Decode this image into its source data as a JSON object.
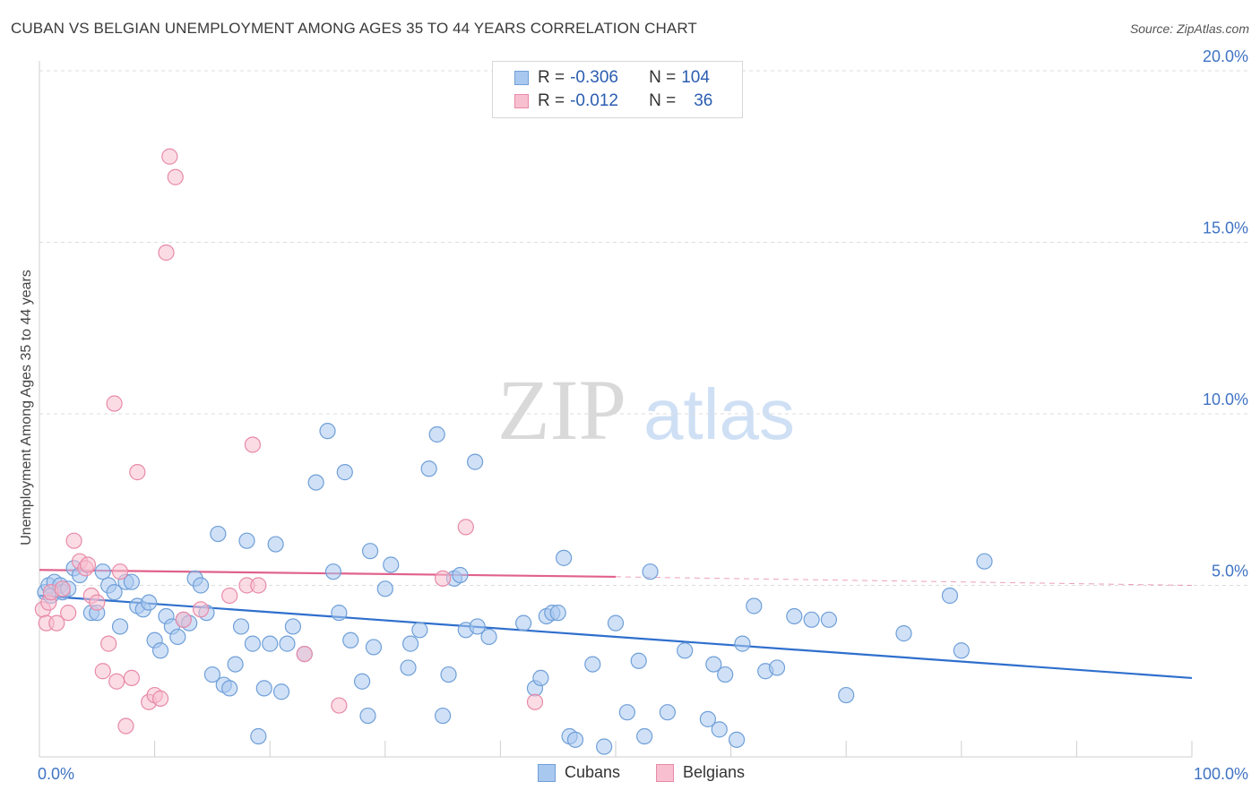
{
  "header": {
    "title": "CUBAN VS BELGIAN UNEMPLOYMENT AMONG AGES 35 TO 44 YEARS CORRELATION CHART",
    "source": "Source: ZipAtlas.com"
  },
  "watermark": {
    "zip": "ZIP",
    "atlas": "atlas"
  },
  "legend": {
    "cubans": {
      "r_label": "R =",
      "r_value": "-0.306",
      "n_label": "N =",
      "n_value": "104"
    },
    "belgians": {
      "r_label": "R =",
      "r_value": "-0.012",
      "n_label": "N =",
      "n_value": "36"
    }
  },
  "bottom_legend": {
    "cubans": "Cubans",
    "belgians": "Belgians"
  },
  "colors": {
    "cubans_fill": "#a9c8f0",
    "cubans_stroke": "#6f9fd8",
    "cubans_line": "#2f6fcd",
    "belgians_fill": "#f7bfd0",
    "belgians_stroke": "#e88aa8",
    "belgians_line": "#e0628c",
    "tick_label": "#3f73c4",
    "grid": "#dcdcdc"
  },
  "chart_data": {
    "type": "scatter",
    "title": "CUBAN VS BELGIAN UNEMPLOYMENT AMONG AGES 35 TO 44 YEARS CORRELATION CHART",
    "ylabel": "Unemployment Among Ages 35 to 44 years",
    "xlabel": "",
    "xlim": [
      0,
      100
    ],
    "ylim": [
      0,
      20.5
    ],
    "x_tick_labels": {
      "0": "0.0%",
      "100": "100.0%"
    },
    "y_ticks": [
      5,
      10,
      15,
      20
    ],
    "y_tick_labels": [
      "5.0%",
      "10.0%",
      "15.0%",
      "20.0%"
    ],
    "grid": "horizontal dashed",
    "legend_position": "top-center",
    "series": [
      {
        "name": "Cubans",
        "trend": {
          "x": [
            0,
            100
          ],
          "y": [
            4.7,
            2.3
          ]
        },
        "points": [
          [
            0.5,
            4.8
          ],
          [
            0.8,
            5.0
          ],
          [
            1.0,
            4.7
          ],
          [
            1.3,
            5.1
          ],
          [
            1.8,
            5.0
          ],
          [
            2.0,
            4.8
          ],
          [
            2.5,
            4.9
          ],
          [
            3.0,
            5.5
          ],
          [
            3.5,
            5.3
          ],
          [
            4.5,
            4.2
          ],
          [
            5.0,
            4.2
          ],
          [
            5.5,
            5.4
          ],
          [
            6.0,
            5.0
          ],
          [
            6.5,
            4.8
          ],
          [
            7.0,
            3.8
          ],
          [
            7.5,
            5.1
          ],
          [
            8.0,
            5.1
          ],
          [
            8.5,
            4.4
          ],
          [
            9.0,
            4.3
          ],
          [
            9.5,
            4.5
          ],
          [
            10.0,
            3.4
          ],
          [
            10.5,
            3.1
          ],
          [
            11.0,
            4.1
          ],
          [
            11.5,
            3.8
          ],
          [
            12.0,
            3.5
          ],
          [
            12.5,
            4.0
          ],
          [
            13.0,
            3.9
          ],
          [
            13.5,
            5.2
          ],
          [
            14.0,
            5.0
          ],
          [
            14.5,
            4.2
          ],
          [
            15.0,
            2.4
          ],
          [
            15.5,
            6.5
          ],
          [
            16.0,
            2.1
          ],
          [
            16.5,
            2.0
          ],
          [
            17.0,
            2.7
          ],
          [
            17.5,
            3.8
          ],
          [
            18.0,
            6.3
          ],
          [
            18.5,
            3.3
          ],
          [
            19.0,
            0.6
          ],
          [
            19.5,
            2.0
          ],
          [
            20.0,
            3.3
          ],
          [
            20.5,
            6.2
          ],
          [
            21.0,
            1.9
          ],
          [
            21.5,
            3.3
          ],
          [
            22.0,
            3.8
          ],
          [
            23.0,
            3.0
          ],
          [
            24.0,
            8.0
          ],
          [
            25.0,
            9.5
          ],
          [
            25.5,
            5.4
          ],
          [
            26.0,
            4.2
          ],
          [
            26.5,
            8.3
          ],
          [
            27.0,
            3.4
          ],
          [
            28.0,
            2.2
          ],
          [
            28.5,
            1.2
          ],
          [
            28.7,
            6.0
          ],
          [
            29.0,
            3.2
          ],
          [
            30.0,
            4.9
          ],
          [
            30.5,
            5.6
          ],
          [
            32.0,
            2.6
          ],
          [
            32.2,
            3.3
          ],
          [
            33.0,
            3.7
          ],
          [
            33.8,
            8.4
          ],
          [
            34.5,
            9.4
          ],
          [
            35.0,
            1.2
          ],
          [
            35.5,
            2.4
          ],
          [
            36.0,
            5.2
          ],
          [
            36.5,
            5.3
          ],
          [
            37.0,
            3.7
          ],
          [
            37.8,
            8.6
          ],
          [
            38.0,
            3.8
          ],
          [
            39.0,
            3.5
          ],
          [
            42.0,
            3.9
          ],
          [
            43.0,
            2.0
          ],
          [
            43.5,
            2.3
          ],
          [
            44.0,
            4.1
          ],
          [
            44.5,
            4.2
          ],
          [
            45.0,
            4.2
          ],
          [
            45.5,
            5.8
          ],
          [
            46.0,
            0.6
          ],
          [
            46.5,
            0.5
          ],
          [
            48.0,
            2.7
          ],
          [
            49.0,
            0.3
          ],
          [
            50.0,
            3.9
          ],
          [
            51.0,
            1.3
          ],
          [
            52.0,
            2.8
          ],
          [
            52.5,
            0.6
          ],
          [
            53.0,
            5.4
          ],
          [
            54.5,
            1.3
          ],
          [
            56.0,
            3.1
          ],
          [
            58.0,
            1.1
          ],
          [
            58.5,
            2.7
          ],
          [
            59.0,
            0.8
          ],
          [
            59.5,
            2.4
          ],
          [
            60.5,
            0.5
          ],
          [
            61.0,
            3.3
          ],
          [
            62.0,
            4.4
          ],
          [
            63.0,
            2.5
          ],
          [
            64.0,
            2.6
          ],
          [
            65.5,
            4.1
          ],
          [
            67.0,
            4.0
          ],
          [
            68.5,
            4.0
          ],
          [
            70.0,
            1.8
          ],
          [
            75.0,
            3.6
          ],
          [
            79.0,
            4.7
          ],
          [
            80.0,
            3.1
          ],
          [
            82.0,
            5.7
          ]
        ]
      },
      {
        "name": "Belgians",
        "trend": {
          "x": [
            0,
            50
          ],
          "y": [
            5.45,
            5.25
          ],
          "dashed_to": [
            100,
            5.0
          ]
        },
        "points": [
          [
            0.3,
            4.3
          ],
          [
            0.6,
            3.9
          ],
          [
            0.8,
            4.5
          ],
          [
            1.0,
            4.8
          ],
          [
            1.5,
            3.9
          ],
          [
            2.0,
            4.9
          ],
          [
            2.5,
            4.2
          ],
          [
            3.0,
            6.3
          ],
          [
            3.5,
            5.7
          ],
          [
            4.0,
            5.5
          ],
          [
            4.2,
            5.6
          ],
          [
            4.5,
            4.7
          ],
          [
            5.0,
            4.5
          ],
          [
            5.5,
            2.5
          ],
          [
            6.0,
            3.3
          ],
          [
            6.5,
            10.3
          ],
          [
            6.7,
            2.2
          ],
          [
            7.0,
            5.4
          ],
          [
            7.5,
            0.9
          ],
          [
            8.0,
            2.3
          ],
          [
            8.5,
            8.3
          ],
          [
            9.5,
            1.6
          ],
          [
            10.0,
            1.8
          ],
          [
            10.5,
            1.7
          ],
          [
            11.0,
            14.7
          ],
          [
            11.3,
            17.5
          ],
          [
            11.8,
            16.9
          ],
          [
            12.5,
            4.0
          ],
          [
            14.0,
            4.3
          ],
          [
            16.5,
            4.7
          ],
          [
            18.0,
            5.0
          ],
          [
            18.5,
            9.1
          ],
          [
            19.0,
            5.0
          ],
          [
            23.0,
            3.0
          ],
          [
            26.0,
            1.5
          ],
          [
            35.0,
            5.2
          ],
          [
            37.0,
            6.7
          ],
          [
            43.0,
            1.6
          ]
        ]
      }
    ]
  }
}
